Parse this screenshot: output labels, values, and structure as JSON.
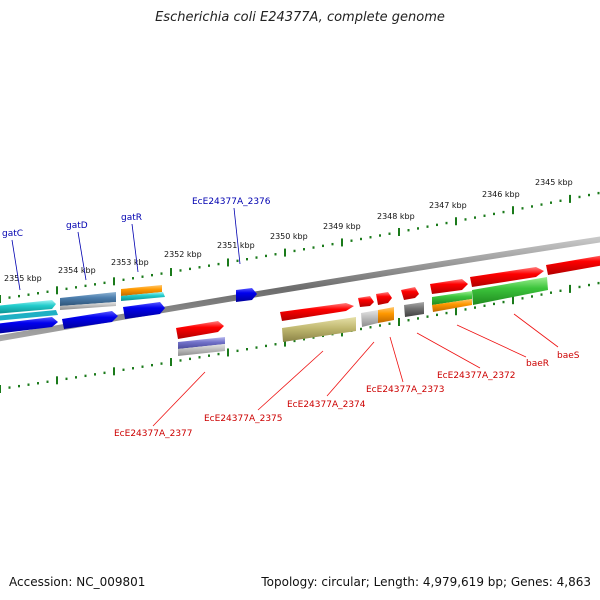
{
  "title": "Escherichia coli E24377A, complete genome",
  "footer": {
    "accession": "Accession: NC_009801",
    "summary": "Topology: circular; Length: 4,979,619 bp; Genes: 4,863"
  },
  "scale_labels": [
    "2355 kbp",
    "2354 kbp",
    "2353 kbp",
    "2352 kbp",
    "2351 kbp",
    "2350 kbp",
    "2349 kbp",
    "2348 kbp",
    "2347 kbp",
    "2346 kbp",
    "2345 kbp"
  ],
  "upper_gene_labels": [
    "gatC",
    "gatD",
    "gatR",
    "EcE24377A_2376"
  ],
  "lower_gene_labels": [
    "EcE24377A_2377",
    "EcE24377A_2375",
    "EcE24377A_2374",
    "EcE24377A_2373",
    "EcE24377A_2372",
    "baeR",
    "baeS"
  ],
  "colors": {
    "label_upper": "#0000b0",
    "label_lower": "#cc0000",
    "ticks": "#1a7a1a",
    "backbone": "#808080"
  }
}
